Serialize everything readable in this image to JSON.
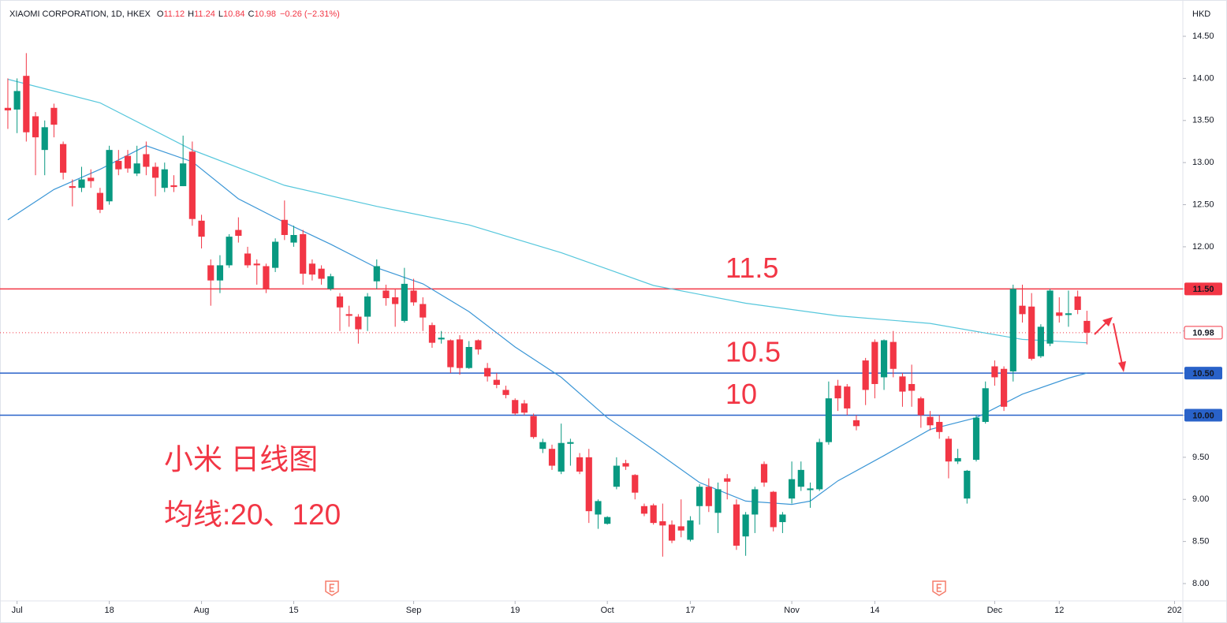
{
  "chart_data": {
    "type": "candlestick",
    "header": {
      "symbol": "XIAOMI CORPORATION, 1D, HKEX",
      "ohlc_labels": [
        "O",
        "H",
        "L",
        "C"
      ],
      "change": "−0.26 (−2.31%)"
    },
    "currency": "HKD",
    "open": [
      13.65,
      13.63,
      14.03,
      13.55,
      13.15,
      13.65,
      13.22,
      12.72,
      12.7,
      12.82,
      12.64,
      12.54,
      13.02,
      13.08,
      12.87,
      13.1,
      12.95,
      12.7,
      12.73,
      12.72,
      13.13,
      12.31,
      11.78,
      11.6,
      11.78,
      12.2,
      11.92,
      11.8,
      11.77,
      11.75,
      12.32,
      12.05,
      12.15,
      11.8,
      11.74,
      11.5,
      11.41,
      11.2,
      11.17,
      11.17,
      11.59,
      11.48,
      11.4,
      11.12,
      11.48,
      11.32,
      11.07,
      10.9,
      10.89,
      10.9,
      10.56,
      10.89,
      10.56,
      10.42,
      10.3,
      10.18,
      10.14,
      9.99,
      9.6,
      9.6,
      9.33,
      9.66,
      9.5,
      9.5,
      8.82,
      8.71,
      9.15,
      9.43,
      9.29,
      8.92,
      8.93,
      8.74,
      8.7,
      8.68,
      8.52,
      8.92,
      9.15,
      8.84,
      9.25,
      8.94,
      8.56,
      8.82,
      9.42,
      9.09,
      8.73,
      9.01,
      9.15,
      9.11,
      9.12,
      9.68,
      10.35,
      10.34,
      9.94,
      10.65,
      10.87,
      10.45,
      10.87,
      10.46,
      10.37,
      10.2,
      9.98,
      9.92,
      9.72,
      9.45,
      9.01,
      9.47,
      9.92,
      10.58,
      10.55,
      10.52,
      11.3,
      11.29,
      10.7,
      10.85,
      11.22,
      11.19,
      11.41,
      11.12
    ],
    "high": [
      14.0,
      14.0,
      14.3,
      13.6,
      13.5,
      13.7,
      13.25,
      12.8,
      12.95,
      12.92,
      12.7,
      13.2,
      13.15,
      13.15,
      13.2,
      13.25,
      13.0,
      13.0,
      12.85,
      13.32,
      13.25,
      12.38,
      11.85,
      11.9,
      12.15,
      12.35,
      12.0,
      11.85,
      11.8,
      12.1,
      12.55,
      12.25,
      12.2,
      11.85,
      11.78,
      11.68,
      11.45,
      11.3,
      11.2,
      11.45,
      11.85,
      11.55,
      11.5,
      11.75,
      11.62,
      11.4,
      11.1,
      11.0,
      10.9,
      10.95,
      10.88,
      10.9,
      10.62,
      10.5,
      10.35,
      10.2,
      10.18,
      10.02,
      9.72,
      9.65,
      9.9,
      9.72,
      9.55,
      9.6,
      9.0,
      8.8,
      9.5,
      9.47,
      9.3,
      8.95,
      8.95,
      8.95,
      8.75,
      9.0,
      8.8,
      9.18,
      9.25,
      9.2,
      9.3,
      9.0,
      8.85,
      9.15,
      9.45,
      9.1,
      8.85,
      9.45,
      9.45,
      9.2,
      9.72,
      10.4,
      10.42,
      10.37,
      10.0,
      10.68,
      10.9,
      10.9,
      11.0,
      10.5,
      10.6,
      10.22,
      10.05,
      10.0,
      9.75,
      9.6,
      9.35,
      10.0,
      10.4,
      10.65,
      10.58,
      11.55,
      11.55,
      11.45,
      11.08,
      11.5,
      11.4,
      11.48,
      11.48,
      11.24
    ],
    "low": [
      13.4,
      13.35,
      13.25,
      12.85,
      12.85,
      13.3,
      12.8,
      12.48,
      12.65,
      12.7,
      12.4,
      12.5,
      12.85,
      12.88,
      12.84,
      12.85,
      12.6,
      12.65,
      12.65,
      12.72,
      12.25,
      11.98,
      11.3,
      11.45,
      11.75,
      12.05,
      11.75,
      11.55,
      11.45,
      11.7,
      12.08,
      12.0,
      11.55,
      11.6,
      11.55,
      11.48,
      11.0,
      11.05,
      10.85,
      11.0,
      11.5,
      11.3,
      11.05,
      11.1,
      11.3,
      11.0,
      10.8,
      10.85,
      10.5,
      10.48,
      10.55,
      10.72,
      10.4,
      10.32,
      10.2,
      10.0,
      10.0,
      9.72,
      9.55,
      9.35,
      9.3,
      9.4,
      9.3,
      8.72,
      8.65,
      8.7,
      9.12,
      9.35,
      9.0,
      8.8,
      8.7,
      8.32,
      8.48,
      8.55,
      8.5,
      8.7,
      8.85,
      8.6,
      9.0,
      8.4,
      8.33,
      8.6,
      9.15,
      8.62,
      8.6,
      8.95,
      9.1,
      8.9,
      9.1,
      9.65,
      10.05,
      10.0,
      9.82,
      10.12,
      10.2,
      10.3,
      10.45,
      10.1,
      10.1,
      9.85,
      9.82,
      9.72,
      9.25,
      9.42,
      8.95,
      9.45,
      9.9,
      10.35,
      10.05,
      10.4,
      11.1,
      10.65,
      10.68,
      10.82,
      11.1,
      11.05,
      11.2,
      10.84
    ],
    "close": [
      13.62,
      13.85,
      13.36,
      13.3,
      13.42,
      13.45,
      12.88,
      12.7,
      12.8,
      12.78,
      12.44,
      13.15,
      12.92,
      12.93,
      12.99,
      12.95,
      12.82,
      12.92,
      12.71,
      12.99,
      12.33,
      12.12,
      11.6,
      11.78,
      12.12,
      12.13,
      11.78,
      11.78,
      11.5,
      12.06,
      12.14,
      12.14,
      11.68,
      11.67,
      11.62,
      11.65,
      11.28,
      11.18,
      11.02,
      11.41,
      11.77,
      11.39,
      11.32,
      11.56,
      11.34,
      11.16,
      10.86,
      10.92,
      10.57,
      10.56,
      10.81,
      10.78,
      10.46,
      10.36,
      10.24,
      10.02,
      10.03,
      9.74,
      9.68,
      9.4,
      9.67,
      9.68,
      9.33,
      8.86,
      8.98,
      8.79,
      9.4,
      9.39,
      9.08,
      8.83,
      8.72,
      8.69,
      8.51,
      8.63,
      8.75,
      9.15,
      8.92,
      9.12,
      9.21,
      8.45,
      8.82,
      9.12,
      9.2,
      8.67,
      8.82,
      9.24,
      9.35,
      9.13,
      9.68,
      10.2,
      10.2,
      10.08,
      9.87,
      10.3,
      10.37,
      10.89,
      10.55,
      10.28,
      10.29,
      10.0,
      9.88,
      9.8,
      9.45,
      9.49,
      9.34,
      9.97,
      10.32,
      10.45,
      10.1,
      11.5,
      11.2,
      10.67,
      11.05,
      11.48,
      11.18,
      11.21,
      11.25,
      10.98
    ],
    "up_color": "#089981",
    "down_color": "#f23645",
    "ma": [
      {
        "x": [
          0,
          5,
          10,
          15,
          20,
          25,
          30,
          35,
          40,
          45,
          50,
          55,
          60,
          65,
          70,
          75,
          80,
          85,
          87,
          90,
          95,
          100,
          105,
          110,
          115,
          117
        ],
        "values": [
          12.32,
          12.68,
          12.92,
          13.2,
          13.01,
          12.57,
          12.29,
          12.03,
          11.75,
          11.56,
          11.23,
          10.81,
          10.45,
          9.97,
          9.59,
          9.2,
          8.98,
          8.94,
          8.98,
          9.22,
          9.52,
          9.83,
          9.97,
          10.25,
          10.44,
          10.5
        ],
        "color": "#3b96d6"
      },
      {
        "x": [
          0,
          10,
          20,
          30,
          40,
          50,
          60,
          70,
          80,
          90,
          100,
          110,
          117
        ],
        "values": [
          13.99,
          13.71,
          13.15,
          12.73,
          12.48,
          12.26,
          11.93,
          11.54,
          11.33,
          11.18,
          11.09,
          10.9,
          10.86
        ],
        "color": "#56c7dc"
      }
    ],
    "levels": [
      {
        "value": 11.5,
        "tag": "11.50",
        "color": "#f23645"
      },
      {
        "value": 10.5,
        "tag": "10.50",
        "color": "#2962c9"
      },
      {
        "value": 10,
        "tag": "10.00",
        "color": "#2962c9"
      }
    ],
    "annotations": [
      "小米 日线图",
      "均线:20、120"
    ],
    "ylim": [
      7.794,
      14.931
    ],
    "yticks": [
      {
        "value": 8,
        "label": "8.00"
      },
      {
        "value": 8.5,
        "label": "8.50"
      },
      {
        "value": 9,
        "label": "9.00"
      },
      {
        "value": 9.5,
        "label": "9.50"
      },
      {
        "value": 10,
        "label": "10.00"
      },
      {
        "value": 10.5,
        "label": "10.50"
      },
      {
        "value": 11,
        "label": "11.00"
      },
      {
        "value": 11.5,
        "label": "11.50"
      },
      {
        "value": 12,
        "label": "12.00"
      },
      {
        "value": 12.5,
        "label": "12.50"
      },
      {
        "value": 13,
        "label": "13.00"
      },
      {
        "value": 13.5,
        "label": "13.50"
      },
      {
        "value": 14,
        "label": "14.00"
      },
      {
        "value": 14.5,
        "label": "14.50"
      }
    ],
    "xlim": [
      -0.85,
      127.4
    ],
    "xticks": [
      {
        "value": 1,
        "label": "Jul"
      },
      {
        "value": 11,
        "label": "18"
      },
      {
        "value": 21,
        "label": "Aug"
      },
      {
        "value": 31,
        "label": "15"
      },
      {
        "value": 44,
        "label": "Sep"
      },
      {
        "value": 55,
        "label": "19"
      },
      {
        "value": 65,
        "label": "Oct"
      },
      {
        "value": 74,
        "label": "17"
      },
      {
        "value": 85,
        "label": "Nov"
      },
      {
        "value": 94,
        "label": "14"
      },
      {
        "value": 107,
        "label": "Dec"
      },
      {
        "value": 114,
        "label": "12"
      },
      {
        "value": 126.5,
        "label": "202"
      }
    ]
  }
}
